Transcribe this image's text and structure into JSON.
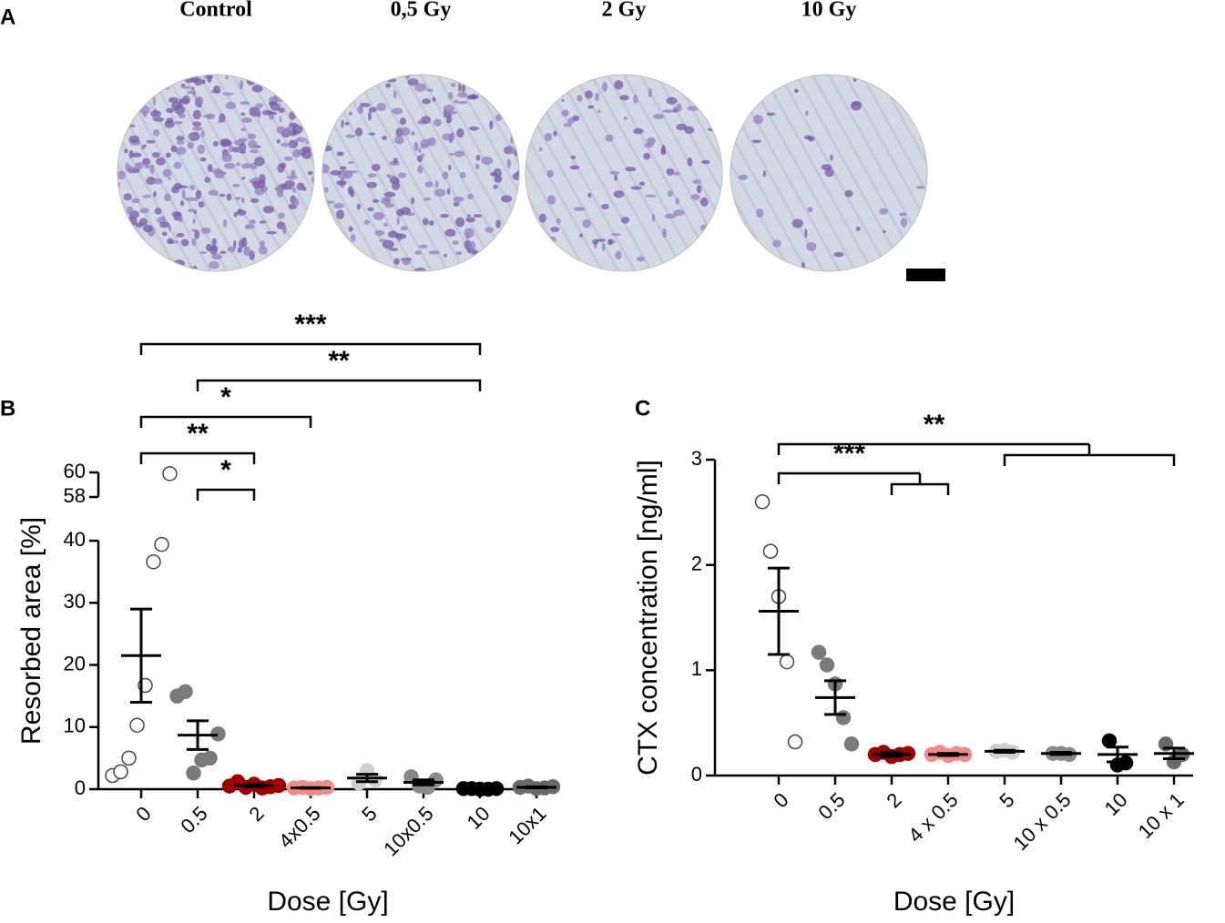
{
  "panel_a": {
    "label": "A",
    "titles": [
      "Control",
      "0,5 Gy",
      "2 Gy",
      "10 Gy"
    ]
  },
  "chart_data": [
    {
      "panel_label": "B",
      "type": "dot",
      "ylabel": "Resorbed area [%]",
      "xlabel": "Dose [Gy]",
      "categories": [
        "0",
        "0.5",
        "2",
        "4x0.5",
        "5",
        "10x0.5",
        "10",
        "10x1"
      ],
      "points": [
        [
          2.2,
          2.8,
          5,
          10.3,
          16.7,
          36.6,
          39.4,
          59.9
        ],
        [
          15,
          15.7,
          2.6,
          4.7,
          5,
          8.9
        ],
        [
          0.5,
          1.2,
          0.3,
          0.8,
          0.2,
          0.4,
          0.6
        ],
        [
          0.2,
          0.3,
          0.1,
          0.2,
          0.3
        ],
        [
          1,
          3,
          1.5
        ],
        [
          2,
          0.5,
          0.3,
          1.5
        ],
        [
          0.1,
          0.1,
          0,
          0,
          0.1
        ],
        [
          0.3,
          0.5,
          0.1,
          0.2,
          0.4
        ]
      ],
      "means": [
        21.5,
        8.7,
        0.6,
        0.2,
        1.8,
        1.1,
        0.05,
        0.3
      ],
      "errors": [
        7.5,
        2.3,
        0.2,
        0.05,
        0.6,
        0.4,
        0.03,
        0.08
      ],
      "colors": [
        "#ffffff",
        "#7a7a7a",
        "#9e0000",
        "#f28a8a",
        "#cfcfcf",
        "#8a8a8a",
        "#000000",
        "#6a6a6a"
      ],
      "ylim": [
        0,
        60
      ],
      "ybreak": [
        40,
        58
      ],
      "yticks": [
        0,
        10,
        20,
        30,
        40,
        58,
        60
      ],
      "annotations": [
        {
          "from": [
            0
          ],
          "to": [
            6
          ],
          "label": "***"
        },
        {
          "from": [
            1
          ],
          "to": [
            6
          ],
          "label": "**"
        },
        {
          "from": [
            0
          ],
          "to": [
            3
          ],
          "label": "*"
        },
        {
          "from": [
            0
          ],
          "to": [
            2
          ],
          "label": "**"
        },
        {
          "from": [
            1
          ],
          "to": [
            2
          ],
          "label": "*"
        }
      ]
    },
    {
      "panel_label": "C",
      "type": "dot",
      "ylabel": "CTX concentration [ng/ml]",
      "xlabel": "Dose [Gy]",
      "categories": [
        "0",
        "0.5",
        "2",
        "4 x 0.5",
        "5",
        "10 x 0.5",
        "10",
        "10 x 1"
      ],
      "points": [
        [
          2.6,
          2.13,
          1.7,
          1.08,
          0.32
        ],
        [
          1.17,
          1.05,
          0.87,
          0.55,
          0.3
        ],
        [
          0.2,
          0.22,
          0.18,
          0.2,
          0.21
        ],
        [
          0.2,
          0.22,
          0.19,
          0.21,
          0.2
        ],
        [
          0.23,
          0.24,
          0.22
        ],
        [
          0.21,
          0.21,
          0.2
        ],
        [
          0.33,
          0.1,
          0.12
        ],
        [
          0.3,
          0.13,
          0.2
        ]
      ],
      "means": [
        1.56,
        0.74,
        0.2,
        0.2,
        0.23,
        0.21,
        0.2,
        0.21
      ],
      "errors": [
        0.41,
        0.16,
        0.02,
        0.01,
        0.01,
        0.01,
        0.07,
        0.05
      ],
      "colors": [
        "#ffffff",
        "#7a7a7a",
        "#9e0000",
        "#f28a8a",
        "#cfcfcf",
        "#8a8a8a",
        "#000000",
        "#6a6a6a"
      ],
      "ylim": [
        0,
        3
      ],
      "yticks": [
        0,
        1,
        2,
        3
      ],
      "annotations": [
        {
          "from": [
            0
          ],
          "to": [
            4,
            5,
            6,
            7
          ],
          "label": "**"
        },
        {
          "from": [
            0
          ],
          "to": [
            2,
            3
          ],
          "label": "***"
        }
      ]
    }
  ]
}
